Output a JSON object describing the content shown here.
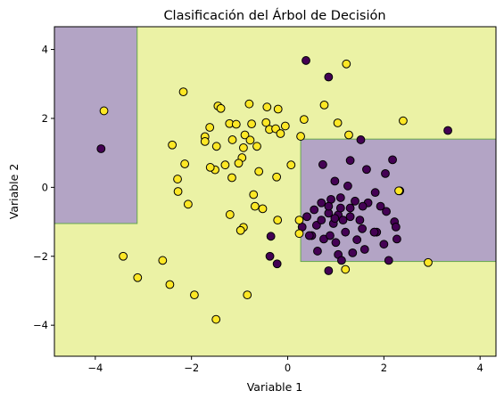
{
  "chart_data": {
    "type": "scatter",
    "title": "Clasificación del Árbol de Decisión",
    "xlabel": "Variable 1",
    "ylabel": "Variable 2",
    "xlim": [
      -4.85,
      4.33
    ],
    "ylim": [
      -4.9,
      4.66
    ],
    "xticks": [
      -4,
      -2,
      0,
      2,
      4
    ],
    "yticks": [
      -4,
      -2,
      0,
      2,
      4
    ],
    "grid": false,
    "colors": {
      "class_0": "#440154",
      "class_1": "#fde725",
      "region_0": "#b3a4c5",
      "region_1": "#ebf2a5",
      "region_border": "#67a84e",
      "point_edge": "#000000"
    },
    "decision_regions": [
      {
        "class": 0,
        "x": [
          -4.85,
          -3.13
        ],
        "y": [
          -1.05,
          4.66
        ]
      },
      {
        "class": 0,
        "x": [
          0.27,
          4.33
        ],
        "y": [
          -2.15,
          1.4
        ]
      }
    ],
    "series": [
      {
        "class": 0,
        "color": "#440154",
        "points": [
          [
            0.38,
            3.68
          ],
          [
            0.85,
            3.2
          ],
          [
            -3.88,
            1.12
          ],
          [
            3.33,
            1.65
          ],
          [
            1.52,
            1.38
          ],
          [
            2.18,
            0.8
          ],
          [
            2.03,
            0.4
          ],
          [
            1.64,
            0.52
          ],
          [
            1.3,
            0.78
          ],
          [
            0.98,
            0.18
          ],
          [
            2.33,
            -0.1
          ],
          [
            0.73,
            0.66
          ],
          [
            1.25,
            0.04
          ],
          [
            1.82,
            -0.15
          ],
          [
            1.67,
            -0.45
          ],
          [
            1.93,
            -0.55
          ],
          [
            2.05,
            -0.7
          ],
          [
            2.22,
            -1.0
          ],
          [
            1.56,
            -0.55
          ],
          [
            1.4,
            -0.4
          ],
          [
            1.1,
            -0.3
          ],
          [
            0.9,
            -0.35
          ],
          [
            0.7,
            -0.45
          ],
          [
            0.55,
            -0.65
          ],
          [
            0.4,
            -0.85
          ],
          [
            0.85,
            -0.75
          ],
          [
            1.05,
            -0.8
          ],
          [
            1.3,
            -0.85
          ],
          [
            1.5,
            -0.95
          ],
          [
            0.95,
            -1.05
          ],
          [
            0.6,
            -1.1
          ],
          [
            0.3,
            -1.15
          ],
          [
            1.2,
            -1.3
          ],
          [
            0.75,
            -1.5
          ],
          [
            1.55,
            -1.2
          ],
          [
            1.8,
            -1.3
          ],
          [
            0.5,
            -1.4
          ],
          [
            1.0,
            -1.6
          ],
          [
            0.62,
            -1.85
          ],
          [
            1.35,
            -1.9
          ],
          [
            1.85,
            -1.3
          ],
          [
            2.25,
            -1.15
          ],
          [
            2.27,
            -1.5
          ],
          [
            2.0,
            -1.65
          ],
          [
            1.6,
            -1.8
          ],
          [
            1.05,
            -1.95
          ],
          [
            1.8,
            -1.3
          ],
          [
            1.3,
            -0.6
          ],
          [
            1.1,
            -0.6
          ],
          [
            0.98,
            -0.9
          ],
          [
            0.88,
            -1.4
          ],
          [
            1.44,
            -1.52
          ],
          [
            2.1,
            -2.12
          ],
          [
            1.12,
            -2.12
          ],
          [
            0.85,
            -2.42
          ],
          [
            -0.35,
            -1.42
          ],
          [
            -0.37,
            -2.0
          ],
          [
            -0.22,
            -2.22
          ],
          [
            0.45,
            -1.4
          ],
          [
            0.85,
            -0.55
          ],
          [
            1.15,
            -0.95
          ],
          [
            0.7,
            -0.95
          ]
        ]
      },
      {
        "class": 1,
        "color": "#fde725",
        "points": [
          [
            -3.82,
            2.22
          ],
          [
            -2.17,
            2.77
          ],
          [
            -1.45,
            2.36
          ],
          [
            -1.39,
            2.29
          ],
          [
            -0.8,
            2.42
          ],
          [
            -0.43,
            2.33
          ],
          [
            -0.2,
            2.27
          ],
          [
            1.22,
            3.58
          ],
          [
            -1.21,
            1.85
          ],
          [
            -1.07,
            1.83
          ],
          [
            -0.75,
            1.84
          ],
          [
            -0.45,
            1.88
          ],
          [
            -0.38,
            1.68
          ],
          [
            -0.25,
            1.7
          ],
          [
            -0.15,
            1.56
          ],
          [
            -0.05,
            1.78
          ],
          [
            0.34,
            1.97
          ],
          [
            0.27,
            1.48
          ],
          [
            0.76,
            2.39
          ],
          [
            1.04,
            1.87
          ],
          [
            1.27,
            1.52
          ],
          [
            2.4,
            1.93
          ],
          [
            -1.62,
            1.74
          ],
          [
            -1.48,
            1.19
          ],
          [
            -1.72,
            1.47
          ],
          [
            -1.72,
            1.33
          ],
          [
            -0.89,
            1.52
          ],
          [
            -0.78,
            1.37
          ],
          [
            -0.64,
            1.19
          ],
          [
            -1.15,
            1.38
          ],
          [
            -0.95,
            0.86
          ],
          [
            -1.02,
            0.7
          ],
          [
            -1.51,
            0.51
          ],
          [
            -1.61,
            0.58
          ],
          [
            -1.3,
            0.65
          ],
          [
            -0.92,
            1.15
          ],
          [
            -2.4,
            1.23
          ],
          [
            -2.14,
            0.68
          ],
          [
            -2.29,
            0.24
          ],
          [
            -2.28,
            -0.12
          ],
          [
            -2.07,
            -0.49
          ],
          [
            -0.6,
            0.46
          ],
          [
            -0.23,
            0.3
          ],
          [
            0.07,
            0.65
          ],
          [
            -1.16,
            0.28
          ],
          [
            -0.71,
            -0.21
          ],
          [
            -0.68,
            -0.55
          ],
          [
            -0.52,
            -0.62
          ],
          [
            -0.92,
            -1.16
          ],
          [
            -1.2,
            -0.79
          ],
          [
            -0.98,
            -1.25
          ],
          [
            -0.21,
            -0.95
          ],
          [
            0.24,
            -0.95
          ],
          [
            0.24,
            -1.34
          ],
          [
            -3.42,
            -2.0
          ],
          [
            -2.6,
            -2.12
          ],
          [
            -3.12,
            -2.62
          ],
          [
            -2.45,
            -2.82
          ],
          [
            -1.94,
            -3.12
          ],
          [
            -0.84,
            -3.12
          ],
          [
            -1.49,
            -3.83
          ],
          [
            2.92,
            -2.18
          ],
          [
            1.2,
            -2.38
          ],
          [
            2.31,
            -0.1
          ]
        ]
      }
    ]
  }
}
